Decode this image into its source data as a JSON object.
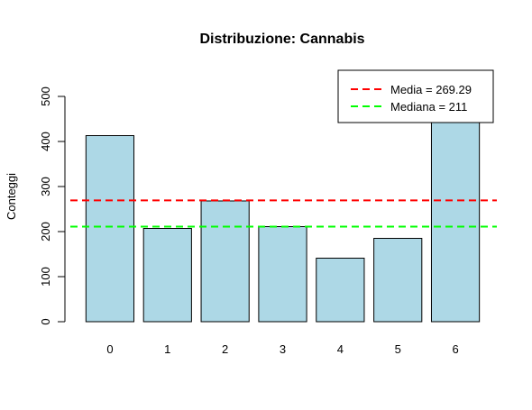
{
  "chart_data": {
    "type": "bar",
    "title": "Distribuzione: Cannabis",
    "xlabel": "",
    "ylabel": "Conteggi",
    "categories": [
      "0",
      "1",
      "2",
      "3",
      "4",
      "5",
      "6"
    ],
    "values": [
      413,
      207,
      268,
      211,
      141,
      185,
      460
    ],
    "ylim": [
      0,
      500
    ],
    "yticks": [
      "0",
      "100",
      "200",
      "300",
      "400",
      "500"
    ],
    "bar_color": "#add8e6",
    "reference_lines": [
      {
        "label": "Media = 269.29",
        "value": 269.29,
        "color": "#ff0000",
        "style": "dashed"
      },
      {
        "label": "Mediana = 211",
        "value": 211,
        "color": "#00ff00",
        "style": "dashed"
      }
    ],
    "legend_position": "top-right",
    "grid": false
  }
}
